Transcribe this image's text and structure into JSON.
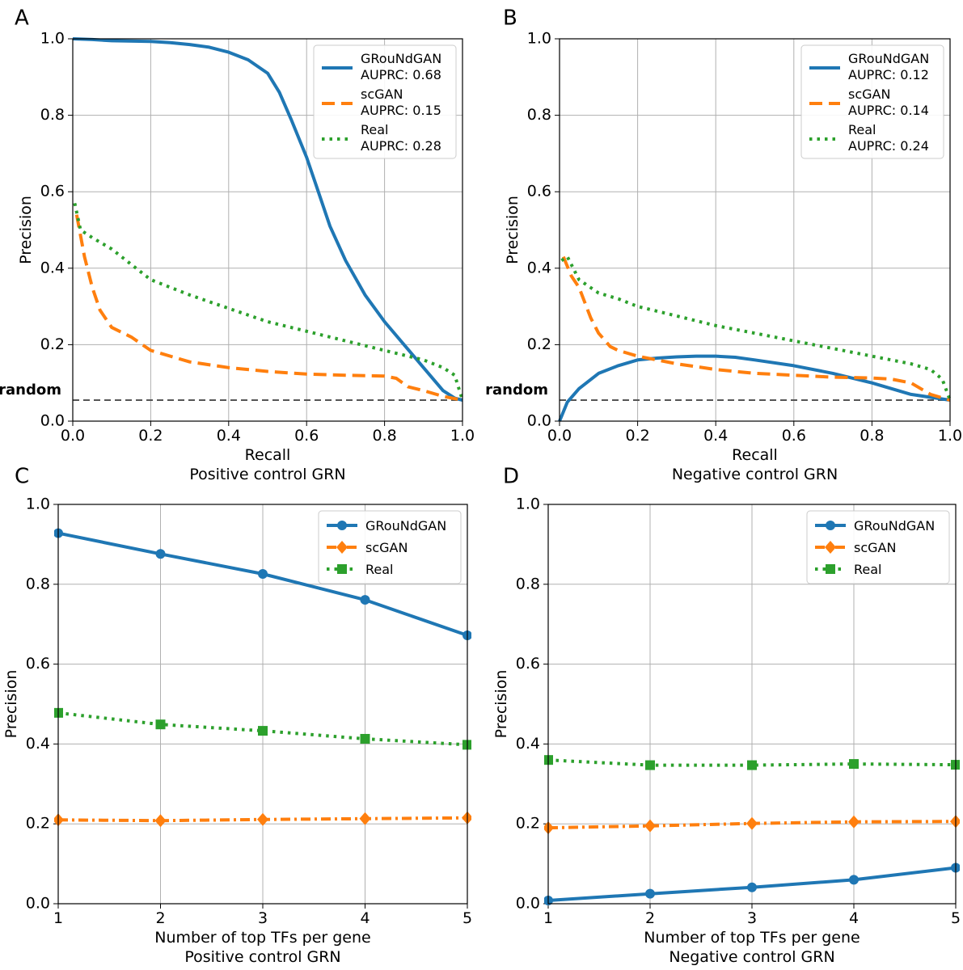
{
  "chart_data": [
    {
      "panel_label": "A",
      "type": "line",
      "xlabel": "Recall",
      "subtitle": "Positive control GRN",
      "ylabel": "Precision",
      "xlim": [
        0,
        1
      ],
      "ylim": [
        0,
        1
      ],
      "xticks": [
        "0.0",
        "0.2",
        "0.4",
        "0.6",
        "0.8",
        "1.0"
      ],
      "yticks": [
        "0.0",
        "0.2",
        "0.4",
        "0.6",
        "0.8",
        "1.0"
      ],
      "grid": true,
      "legend_position": "top-right",
      "baseline": {
        "label": "random",
        "value": 0.055
      },
      "series": [
        {
          "name": "GRouNdGAN",
          "sublabel": "AUPRC: 0.68",
          "color": "#1f77b4",
          "style": "solid",
          "x": [
            0,
            0.05,
            0.1,
            0.2,
            0.25,
            0.3,
            0.35,
            0.4,
            0.45,
            0.5,
            0.53,
            0.56,
            0.6,
            0.63,
            0.66,
            0.7,
            0.75,
            0.8,
            0.85,
            0.9,
            0.95,
            0.98,
            1.0
          ],
          "y": [
            1.0,
            0.998,
            0.995,
            0.993,
            0.99,
            0.985,
            0.978,
            0.965,
            0.945,
            0.91,
            0.86,
            0.79,
            0.69,
            0.6,
            0.51,
            0.42,
            0.33,
            0.26,
            0.2,
            0.14,
            0.08,
            0.06,
            0.055
          ]
        },
        {
          "name": "scGAN",
          "sublabel": "AUPRC: 0.15",
          "color": "#ff7f0e",
          "style": "dashed",
          "x": [
            0.01,
            0.03,
            0.05,
            0.07,
            0.1,
            0.15,
            0.2,
            0.3,
            0.4,
            0.5,
            0.6,
            0.7,
            0.8,
            0.83,
            0.86,
            0.9,
            0.95,
            1.0
          ],
          "y": [
            0.54,
            0.43,
            0.35,
            0.29,
            0.245,
            0.22,
            0.185,
            0.155,
            0.14,
            0.13,
            0.123,
            0.12,
            0.118,
            0.112,
            0.09,
            0.08,
            0.065,
            0.055
          ]
        },
        {
          "name": "Real",
          "sublabel": "AUPRC: 0.28",
          "color": "#2ca02c",
          "style": "dotted",
          "x": [
            0.005,
            0.02,
            0.05,
            0.1,
            0.15,
            0.2,
            0.3,
            0.4,
            0.5,
            0.6,
            0.7,
            0.8,
            0.9,
            0.95,
            0.98,
            1.0
          ],
          "y": [
            0.57,
            0.5,
            0.48,
            0.45,
            0.41,
            0.37,
            0.33,
            0.295,
            0.26,
            0.235,
            0.21,
            0.185,
            0.16,
            0.14,
            0.12,
            0.055
          ]
        }
      ]
    },
    {
      "panel_label": "B",
      "type": "line",
      "xlabel": "Recall",
      "subtitle": "Negative control GRN",
      "ylabel": "Precision",
      "xlim": [
        0,
        1
      ],
      "ylim": [
        0,
        1
      ],
      "xticks": [
        "0.0",
        "0.2",
        "0.4",
        "0.6",
        "0.8",
        "1.0"
      ],
      "yticks": [
        "0.0",
        "0.2",
        "0.4",
        "0.6",
        "0.8",
        "1.0"
      ],
      "grid": true,
      "legend_position": "top-right",
      "baseline": {
        "label": "random",
        "value": 0.055
      },
      "series": [
        {
          "name": "GRouNdGAN",
          "sublabel": "AUPRC: 0.12",
          "color": "#1f77b4",
          "style": "solid",
          "x": [
            0,
            0.02,
            0.05,
            0.1,
            0.15,
            0.2,
            0.25,
            0.3,
            0.35,
            0.4,
            0.45,
            0.5,
            0.6,
            0.7,
            0.8,
            0.9,
            1.0
          ],
          "y": [
            0.0,
            0.05,
            0.085,
            0.125,
            0.145,
            0.16,
            0.165,
            0.168,
            0.17,
            0.17,
            0.167,
            0.16,
            0.145,
            0.125,
            0.1,
            0.07,
            0.055
          ]
        },
        {
          "name": "scGAN",
          "sublabel": "AUPRC: 0.14",
          "color": "#ff7f0e",
          "style": "dashed",
          "x": [
            0.01,
            0.03,
            0.05,
            0.08,
            0.1,
            0.13,
            0.15,
            0.2,
            0.3,
            0.4,
            0.5,
            0.6,
            0.7,
            0.8,
            0.85,
            0.9,
            0.95,
            1.0
          ],
          "y": [
            0.43,
            0.38,
            0.35,
            0.27,
            0.23,
            0.195,
            0.185,
            0.17,
            0.15,
            0.135,
            0.125,
            0.12,
            0.115,
            0.113,
            0.11,
            0.1,
            0.07,
            0.055
          ]
        },
        {
          "name": "Real",
          "sublabel": "AUPRC: 0.24",
          "color": "#2ca02c",
          "style": "dotted",
          "x": [
            0.005,
            0.02,
            0.05,
            0.1,
            0.15,
            0.2,
            0.3,
            0.4,
            0.5,
            0.6,
            0.7,
            0.8,
            0.9,
            0.95,
            0.98,
            1.0
          ],
          "y": [
            0.42,
            0.43,
            0.37,
            0.335,
            0.32,
            0.3,
            0.275,
            0.25,
            0.23,
            0.21,
            0.19,
            0.17,
            0.15,
            0.135,
            0.11,
            0.055
          ]
        }
      ]
    },
    {
      "panel_label": "C",
      "type": "line",
      "xlabel": "Number of top TFs per gene",
      "subtitle": "Positive control GRN",
      "ylabel": "Precision",
      "xlim": [
        1,
        5
      ],
      "ylim": [
        0,
        1
      ],
      "xticks": [
        "1",
        "2",
        "3",
        "4",
        "5"
      ],
      "yticks": [
        "0.0",
        "0.2",
        "0.4",
        "0.6",
        "0.8",
        "1.0"
      ],
      "grid": true,
      "legend_position": "top-right",
      "series": [
        {
          "name": "GRouNdGAN",
          "color": "#1f77b4",
          "style": "solid",
          "marker": "circle",
          "x": [
            1,
            2,
            3,
            4,
            5
          ],
          "y": [
            0.928,
            0.876,
            0.826,
            0.761,
            0.672
          ]
        },
        {
          "name": "scGAN",
          "color": "#ff7f0e",
          "style": "dashdot",
          "marker": "diamond",
          "x": [
            1,
            2,
            3,
            4,
            5
          ],
          "y": [
            0.21,
            0.208,
            0.211,
            0.213,
            0.215
          ]
        },
        {
          "name": "Real",
          "color": "#2ca02c",
          "style": "dotted",
          "marker": "square",
          "x": [
            1,
            2,
            3,
            4,
            5
          ],
          "y": [
            0.478,
            0.449,
            0.433,
            0.413,
            0.398
          ]
        }
      ]
    },
    {
      "panel_label": "D",
      "type": "line",
      "xlabel": "Number of top TFs per gene",
      "subtitle": "Negative control GRN",
      "ylabel": "Precision",
      "xlim": [
        1,
        5
      ],
      "ylim": [
        0,
        1
      ],
      "xticks": [
        "1",
        "2",
        "3",
        "4",
        "5"
      ],
      "yticks": [
        "0.0",
        "0.2",
        "0.4",
        "0.6",
        "0.8",
        "1.0"
      ],
      "grid": true,
      "legend_position": "top-right",
      "series": [
        {
          "name": "GRouNdGAN",
          "color": "#1f77b4",
          "style": "solid",
          "marker": "circle",
          "x": [
            1,
            2,
            3,
            4,
            5
          ],
          "y": [
            0.008,
            0.025,
            0.041,
            0.06,
            0.09
          ]
        },
        {
          "name": "scGAN",
          "color": "#ff7f0e",
          "style": "dashdot",
          "marker": "diamond",
          "x": [
            1,
            2,
            3,
            4,
            5
          ],
          "y": [
            0.19,
            0.195,
            0.201,
            0.205,
            0.206
          ]
        },
        {
          "name": "Real",
          "color": "#2ca02c",
          "style": "dotted",
          "marker": "square",
          "x": [
            1,
            2,
            3,
            4,
            5
          ],
          "y": [
            0.36,
            0.347,
            0.347,
            0.35,
            0.348
          ]
        }
      ]
    }
  ]
}
